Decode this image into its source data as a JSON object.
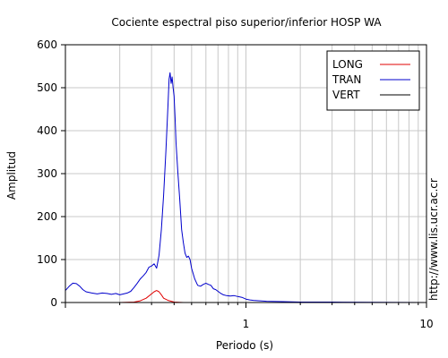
{
  "chart_data": {
    "type": "line",
    "title": "Cociente espectral piso superior/inferior  HOSP WA",
    "xlabel": "Periodo (s)",
    "ylabel": "Amplitud",
    "x_scale": "log",
    "xlim": [
      0.1,
      10
    ],
    "ylim": [
      0,
      600
    ],
    "x_tick_labels": [
      {
        "value": 1,
        "label": "1"
      },
      {
        "value": 10,
        "label": "10"
      }
    ],
    "y_ticks": [
      0,
      100,
      200,
      300,
      400,
      500,
      600
    ],
    "grid": true,
    "legend_position": "top-right",
    "side_note": "http://www.lis.ucr.ac.cr",
    "series": [
      {
        "name": "LONG",
        "color": "#e00000",
        "points": [
          [
            0.1,
            0
          ],
          [
            0.2,
            0
          ],
          [
            0.24,
            1
          ],
          [
            0.26,
            4
          ],
          [
            0.28,
            10
          ],
          [
            0.3,
            20
          ],
          [
            0.31,
            25
          ],
          [
            0.32,
            28
          ],
          [
            0.33,
            25
          ],
          [
            0.34,
            18
          ],
          [
            0.35,
            10
          ],
          [
            0.37,
            5
          ],
          [
            0.4,
            1
          ],
          [
            0.45,
            0
          ],
          [
            10,
            0
          ]
        ]
      },
      {
        "name": "TRAN",
        "color": "#0000cc",
        "points": [
          [
            0.1,
            28
          ],
          [
            0.105,
            38
          ],
          [
            0.11,
            45
          ],
          [
            0.115,
            44
          ],
          [
            0.12,
            38
          ],
          [
            0.125,
            30
          ],
          [
            0.13,
            25
          ],
          [
            0.14,
            22
          ],
          [
            0.15,
            20
          ],
          [
            0.16,
            22
          ],
          [
            0.17,
            21
          ],
          [
            0.18,
            19
          ],
          [
            0.19,
            21
          ],
          [
            0.2,
            18
          ],
          [
            0.21,
            20
          ],
          [
            0.22,
            22
          ],
          [
            0.23,
            26
          ],
          [
            0.24,
            35
          ],
          [
            0.25,
            45
          ],
          [
            0.26,
            55
          ],
          [
            0.27,
            62
          ],
          [
            0.28,
            70
          ],
          [
            0.29,
            82
          ],
          [
            0.3,
            85
          ],
          [
            0.31,
            90
          ],
          [
            0.32,
            80
          ],
          [
            0.33,
            110
          ],
          [
            0.34,
            170
          ],
          [
            0.35,
            250
          ],
          [
            0.36,
            350
          ],
          [
            0.37,
            460
          ],
          [
            0.375,
            520
          ],
          [
            0.38,
            535
          ],
          [
            0.385,
            510
          ],
          [
            0.39,
            525
          ],
          [
            0.395,
            500
          ],
          [
            0.4,
            480
          ],
          [
            0.405,
            430
          ],
          [
            0.41,
            370
          ],
          [
            0.42,
            300
          ],
          [
            0.43,
            240
          ],
          [
            0.44,
            170
          ],
          [
            0.45,
            140
          ],
          [
            0.46,
            115
          ],
          [
            0.47,
            105
          ],
          [
            0.48,
            108
          ],
          [
            0.49,
            100
          ],
          [
            0.5,
            80
          ],
          [
            0.52,
            55
          ],
          [
            0.54,
            40
          ],
          [
            0.56,
            38
          ],
          [
            0.58,
            42
          ],
          [
            0.6,
            45
          ],
          [
            0.62,
            42
          ],
          [
            0.64,
            40
          ],
          [
            0.66,
            32
          ],
          [
            0.68,
            30
          ],
          [
            0.7,
            26
          ],
          [
            0.72,
            22
          ],
          [
            0.75,
            18
          ],
          [
            0.78,
            16
          ],
          [
            0.82,
            15
          ],
          [
            0.86,
            16
          ],
          [
            0.9,
            14
          ],
          [
            0.95,
            12
          ],
          [
            1.0,
            8
          ],
          [
            1.05,
            6
          ],
          [
            1.1,
            5
          ],
          [
            1.3,
            3
          ],
          [
            1.6,
            2
          ],
          [
            2.0,
            1
          ],
          [
            3.0,
            1
          ],
          [
            5.0,
            0.5
          ],
          [
            10,
            0
          ]
        ]
      },
      {
        "name": "VERT",
        "color": "#000000",
        "points": [
          [
            0.1,
            0
          ],
          [
            10,
            0
          ]
        ]
      }
    ]
  }
}
